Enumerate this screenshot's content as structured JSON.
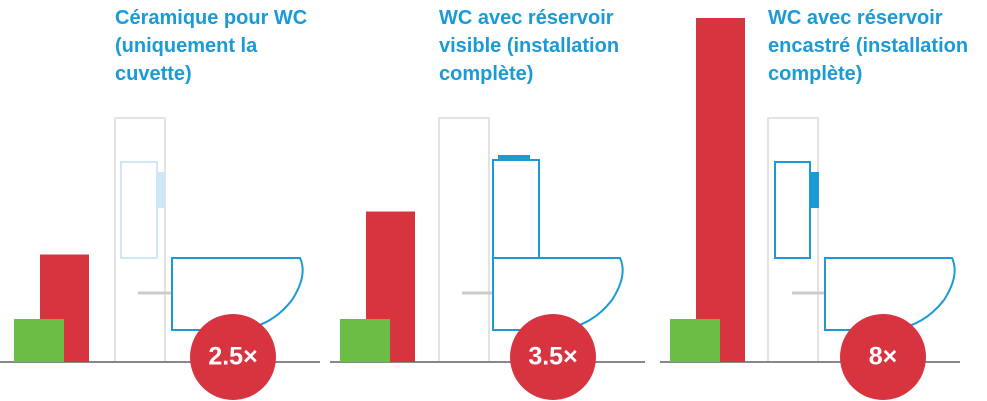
{
  "chart_data": {
    "type": "bar",
    "categories": [
      "Céramique pour WC (uniquement la cuvette)",
      "WC avec réservoir visible (installation complète)",
      "WC avec réservoir encastré (installation complète)"
    ],
    "series": [
      {
        "color": "#6cbd45",
        "values": [
          1,
          1,
          1
        ]
      },
      {
        "color": "#d73440",
        "values": [
          2.5,
          3.5,
          8
        ],
        "value_labels": [
          "2.5×",
          "3.5×",
          "8×"
        ]
      }
    ],
    "ylim": [
      0,
      8
    ]
  }
}
